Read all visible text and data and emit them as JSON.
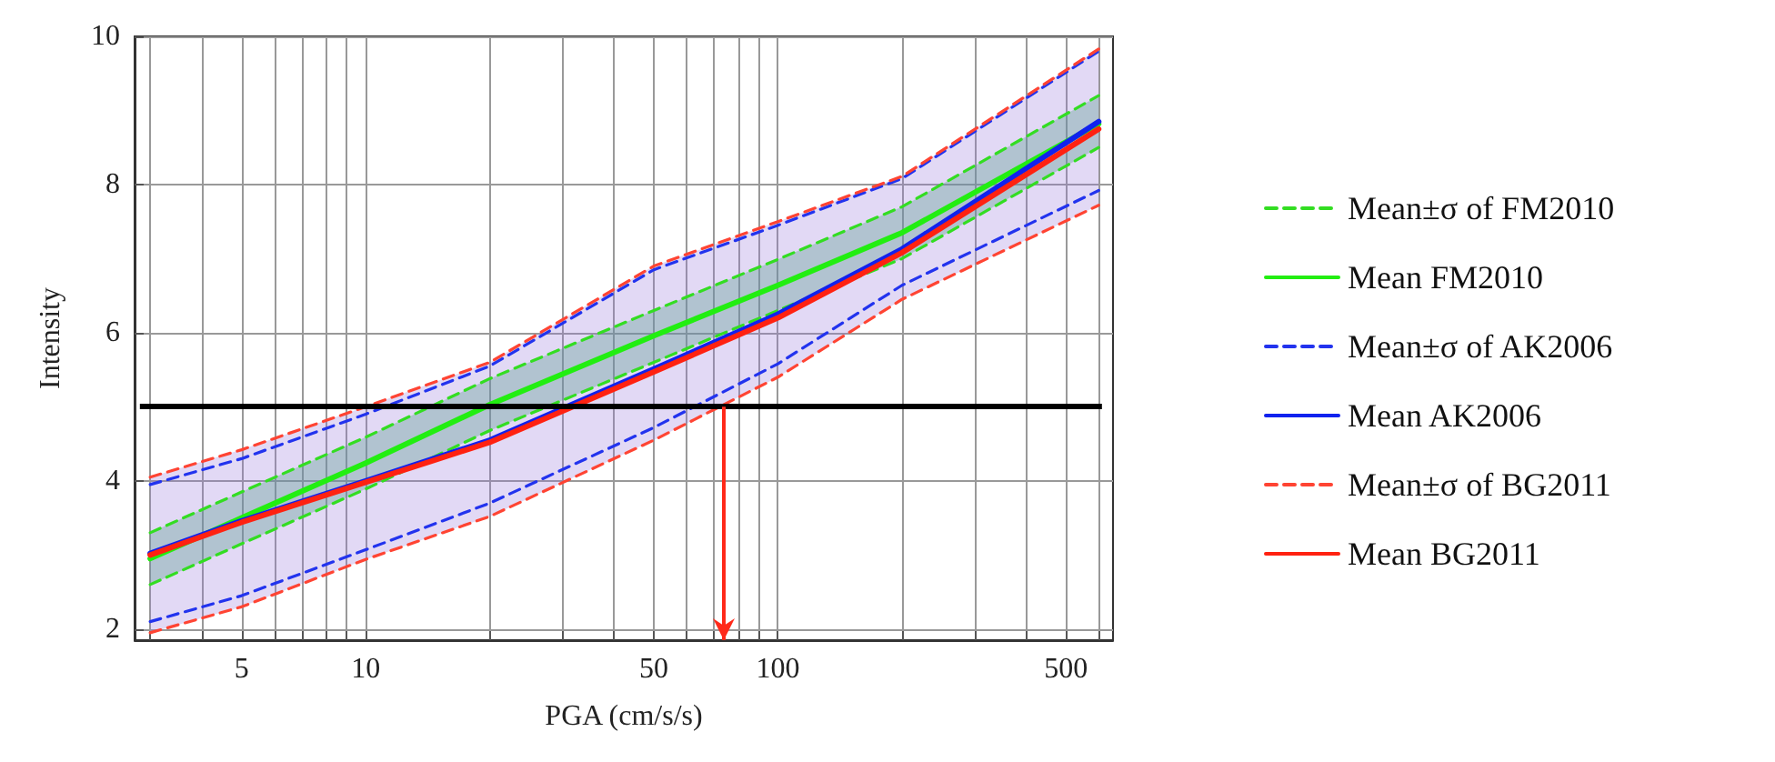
{
  "chart_data": {
    "type": "line",
    "xlabel": "PGA (cm/s/s)",
    "ylabel": "Intensity",
    "log": "x",
    "x": [
      3,
      5,
      10,
      20,
      50,
      100,
      200,
      600
    ],
    "series": [
      {
        "name": "Mean±σ of FM2010",
        "color": "#33dd22",
        "line_style": "dashed",
        "values": [
          3.3,
          3.85,
          4.59,
          5.38,
          6.3,
          6.99,
          7.7,
          9.2
        ]
      },
      {
        "color": "#33dd22",
        "line_style": "dashed",
        "values": [
          2.6,
          3.15,
          3.89,
          4.68,
          5.6,
          6.3,
          7.0,
          8.5
        ]
      },
      {
        "name": "Mean FM2010",
        "color": "#22ee11",
        "line_style": "solid",
        "values": [
          2.95,
          3.5,
          4.24,
          5.03,
          5.96,
          6.64,
          7.35,
          8.82
        ],
        "lower": [
          2.6,
          3.15,
          3.89,
          4.68,
          5.6,
          6.3,
          7.0,
          8.5
        ],
        "upper": [
          3.3,
          3.85,
          4.59,
          5.38,
          6.3,
          6.99,
          7.7,
          9.2
        ]
      },
      {
        "name": "Mean±σ of AK2006",
        "color": "#2233ee",
        "line_style": "dashed",
        "values": [
          3.95,
          4.3,
          4.9,
          5.55,
          6.85,
          7.45,
          8.08,
          9.8
        ]
      },
      {
        "color": "#2233ee",
        "line_style": "dashed",
        "values": [
          2.1,
          2.45,
          3.07,
          3.7,
          4.72,
          5.58,
          6.64,
          7.92
        ]
      },
      {
        "name": "Mean AK2006",
        "color": "#1122ee",
        "line_style": "solid",
        "values": [
          3.02,
          3.46,
          4.0,
          4.55,
          5.51,
          6.25,
          7.13,
          8.85
        ]
      },
      {
        "name": "Mean±σ of BG2011",
        "color": "#ff4433",
        "line_style": "dashed",
        "values": [
          4.05,
          4.42,
          5.0,
          5.6,
          6.9,
          7.5,
          8.11,
          9.83
        ]
      },
      {
        "color": "#ff4433",
        "line_style": "dashed",
        "values": [
          1.95,
          2.3,
          2.94,
          3.52,
          4.55,
          5.4,
          6.45,
          7.72
        ]
      },
      {
        "name": "Mean BG2011",
        "color": "#ff2211",
        "line_style": "solid",
        "values": [
          3.0,
          3.44,
          3.98,
          4.52,
          5.47,
          6.2,
          7.08,
          8.75
        ],
        "lower": [
          1.95,
          2.3,
          2.94,
          3.52,
          4.55,
          5.4,
          6.45,
          7.72
        ],
        "upper": [
          4.05,
          4.42,
          5.0,
          5.6,
          6.9,
          7.5,
          8.11,
          9.83
        ]
      }
    ],
    "xlim": [
      2.75,
      650
    ],
    "xticks": [
      {
        "value": 3,
        "label": null
      },
      {
        "value": 4,
        "label": null
      },
      5,
      {
        "value": 6,
        "label": null
      },
      {
        "value": 7,
        "label": null
      },
      {
        "value": 8,
        "label": null
      },
      {
        "value": 9,
        "label": null
      },
      10,
      {
        "value": 20,
        "label": null
      },
      {
        "value": 30,
        "label": null
      },
      {
        "value": 40,
        "label": null
      },
      50,
      {
        "value": 60,
        "label": null
      },
      {
        "value": 70,
        "label": null
      },
      {
        "value": 80,
        "label": null
      },
      {
        "value": 90,
        "label": null
      },
      100,
      {
        "value": 200,
        "label": null
      },
      {
        "value": 300,
        "label": null
      },
      {
        "value": 400,
        "label": null
      },
      500,
      {
        "value": 600,
        "label": null
      }
    ],
    "ylim": [
      1.85,
      10
    ],
    "yticks": [
      2,
      4,
      6,
      8,
      10
    ],
    "grid": true,
    "legend": "right",
    "marker": "none",
    "ref_lines": [
      {
        "axis": "y",
        "value": 5,
        "color": "#000000",
        "line_style": "solid"
      },
      {
        "axis": "x",
        "value": 74,
        "color": "#ff2a1a",
        "line_style": "solid"
      }
    ]
  }
}
